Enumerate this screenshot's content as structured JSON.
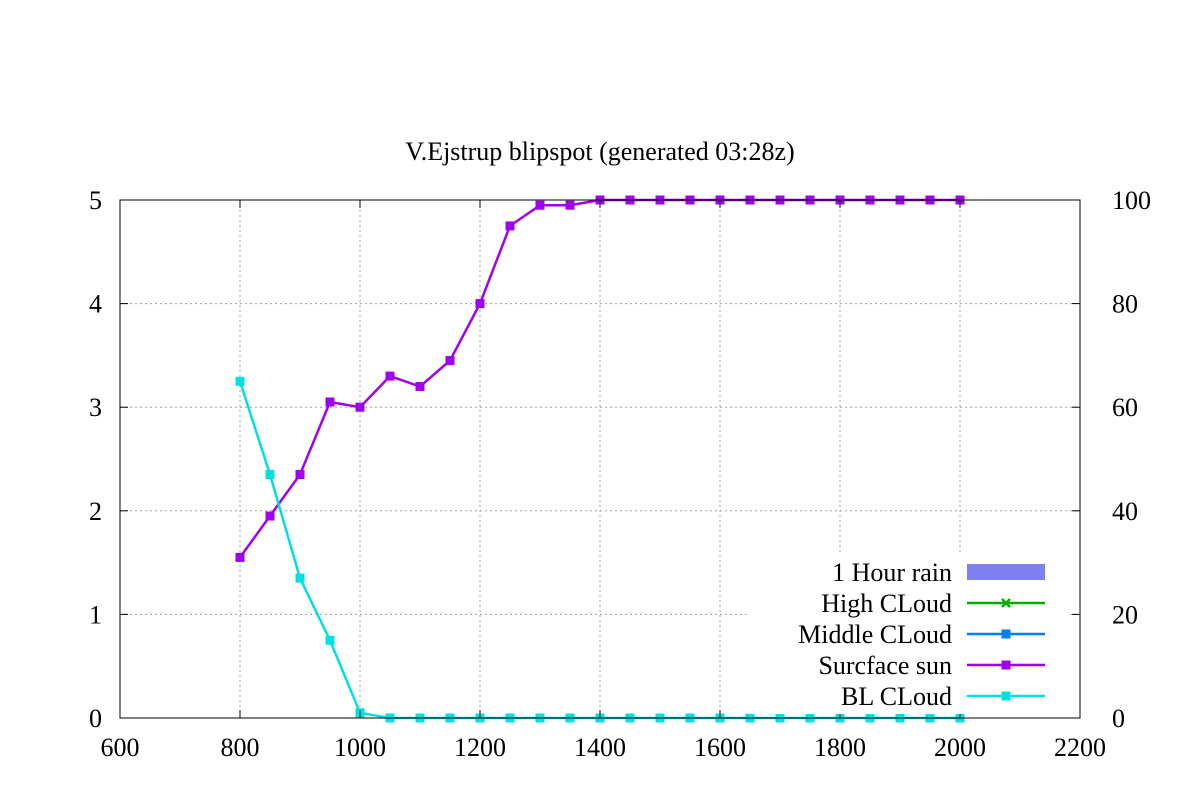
{
  "chart_data": {
    "type": "line",
    "title": "V.Ejstrup  blipspot  (generated  03:28z)",
    "xlim": [
      600,
      2200
    ],
    "x_ticks": [
      600,
      800,
      1000,
      1200,
      1400,
      1600,
      1800,
      2000,
      2200
    ],
    "y_left_lim": [
      0,
      5
    ],
    "y_left_ticks": [
      0,
      1,
      2,
      3,
      4,
      5
    ],
    "y_right_lim": [
      0,
      100
    ],
    "y_right_ticks": [
      0,
      20,
      40,
      60,
      80,
      100
    ],
    "grid": true,
    "legend_position": "bottom-right",
    "series": [
      {
        "name": "1  Hour  rain",
        "axis": "left",
        "style": "bar",
        "color": "#8080f0",
        "x": [],
        "values": []
      },
      {
        "name": "High  CLoud",
        "axis": "left",
        "style": "line-cross",
        "color": "#00b000",
        "x": [],
        "values": []
      },
      {
        "name": "Middle  CLoud",
        "axis": "left",
        "style": "line-square",
        "color": "#0080f0",
        "x": [],
        "values": []
      },
      {
        "name": "Surcface  sun",
        "axis": "left",
        "style": "line-square",
        "color": "#a000f0",
        "x": [
          800,
          850,
          900,
          950,
          1000,
          1050,
          1100,
          1150,
          1200,
          1250,
          1300,
          1350,
          1400,
          1450,
          1500,
          1550,
          1600,
          1650,
          1700,
          1750,
          1800,
          1850,
          1900,
          1950,
          2000
        ],
        "values": [
          1.55,
          1.95,
          2.35,
          3.05,
          3.0,
          3.3,
          3.2,
          3.45,
          4.0,
          4.75,
          4.95,
          4.95,
          5.0,
          5.0,
          5.0,
          5.0,
          5.0,
          5.0,
          5.0,
          5.0,
          5.0,
          5.0,
          5.0,
          5.0,
          5.0
        ]
      },
      {
        "name": "BL  CLoud",
        "axis": "left",
        "style": "line-square",
        "color": "#00e0e0",
        "x": [
          800,
          850,
          900,
          950,
          1000,
          1050,
          1100,
          1150,
          1200,
          1250,
          1300,
          1350,
          1400,
          1450,
          1500,
          1550,
          1600,
          1650,
          1700,
          1750,
          1800,
          1850,
          1900,
          1950,
          2000
        ],
        "values": [
          3.25,
          2.35,
          1.35,
          0.75,
          0.05,
          0.0,
          0.0,
          0.0,
          0.0,
          0.0,
          0.0,
          0.0,
          0.0,
          0.0,
          0.0,
          0.0,
          0.0,
          0.0,
          0.0,
          0.0,
          0.0,
          0.0,
          0.0,
          0.0,
          0.0
        ]
      }
    ]
  }
}
